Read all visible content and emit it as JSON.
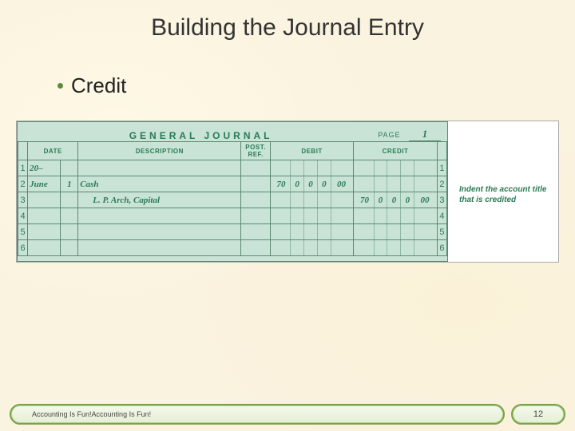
{
  "title": "Building the Journal Entry",
  "bullet": "Credit",
  "journal": {
    "heading": "GENERAL JOURNAL",
    "page_label": "PAGE",
    "page_number": "1",
    "columns": {
      "date": "DATE",
      "description": "DESCRIPTION",
      "post_ref": "POST. REF.",
      "debit": "DEBIT",
      "credit": "CREDIT"
    },
    "row_year": "20–",
    "row1": {
      "num": "1",
      "month": "June",
      "day": "1",
      "desc": "Cash",
      "debit": [
        "70",
        "0",
        "0",
        "0",
        "00"
      ],
      "credit": [
        "",
        "",
        "",
        "",
        ""
      ]
    },
    "row2": {
      "num": "2"
    },
    "row3": {
      "num": "3",
      "desc": "L. P. Arch, Capital",
      "debit": [
        "",
        "",
        "",
        "",
        ""
      ],
      "credit": [
        "70",
        "0",
        "0",
        "0",
        "00"
      ]
    },
    "row4": {
      "num": "4"
    },
    "row5": {
      "num": "5"
    },
    "row6": {
      "num": "6"
    }
  },
  "annotation": "Indent the account title that is credited",
  "footer_text": "Accounting Is Fun!Accounting Is Fun!",
  "slide_number": "12",
  "colors": {
    "accent_green": "#2a7a55",
    "ledger_bg": "#c9e4d6",
    "border_green": "#5b8a6f",
    "footer_border": "#7aa349"
  }
}
